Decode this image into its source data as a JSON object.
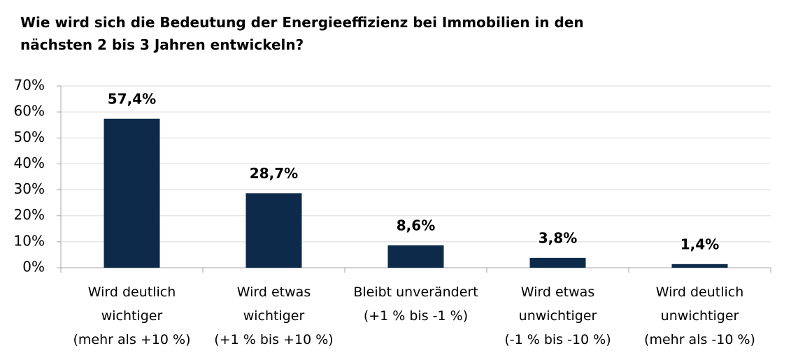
{
  "chart_data": {
    "type": "bar",
    "title": "Wie wird sich die Bedeutung der Energieeffizienz bei Immobilien in den\nnächsten 2 bis 3 Jahren entwickeln?",
    "categories": [
      "Wird deutlich\nwichtiger\n(mehr als +10 %)",
      "Wird etwas\nwichtiger\n(+1 % bis +10 %)",
      "Bleibt unverändert\n(+1 % bis -1 %)",
      "Wird etwas\nunwichtiger\n(-1 % bis -10 %)",
      "Wird deutlich\nunwichtiger\n(mehr als -10 %)"
    ],
    "values": [
      57.4,
      28.7,
      8.6,
      3.8,
      1.4
    ],
    "value_labels": [
      "57,4%",
      "28,7%",
      "8,6%",
      "3,8%",
      "1,4%"
    ],
    "color": "#0d2a4a",
    "ylim": [
      0,
      70
    ],
    "yticks": [
      {
        "value": 0,
        "label": "0%"
      },
      {
        "value": 10,
        "label": "10%"
      },
      {
        "value": 20,
        "label": "20%"
      },
      {
        "value": 30,
        "label": "30%"
      },
      {
        "value": 40,
        "label": "40%"
      },
      {
        "value": 50,
        "label": "50%"
      },
      {
        "value": 60,
        "label": "60%"
      },
      {
        "value": 70,
        "label": "70%"
      }
    ],
    "grid": true
  }
}
